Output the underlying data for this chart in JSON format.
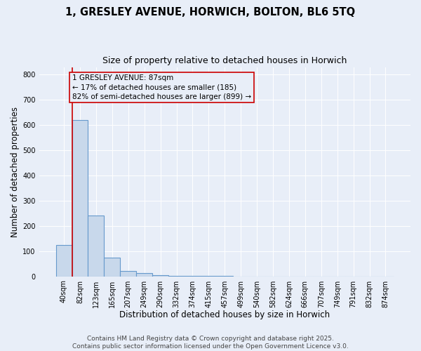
{
  "title_line1": "1, GRESLEY AVENUE, HORWICH, BOLTON, BL6 5TQ",
  "title_line2": "Size of property relative to detached houses in Horwich",
  "xlabel": "Distribution of detached houses by size in Horwich",
  "ylabel": "Number of detached properties",
  "categories": [
    "40sqm",
    "82sqm",
    "123sqm",
    "165sqm",
    "207sqm",
    "249sqm",
    "290sqm",
    "332sqm",
    "374sqm",
    "415sqm",
    "457sqm",
    "499sqm",
    "540sqm",
    "582sqm",
    "624sqm",
    "666sqm",
    "707sqm",
    "749sqm",
    "791sqm",
    "832sqm",
    "874sqm"
  ],
  "values": [
    125,
    620,
    240,
    75,
    22,
    12,
    5,
    3,
    2,
    1,
    1,
    0,
    0,
    0,
    0,
    0,
    0,
    0,
    0,
    0,
    0
  ],
  "bar_color": "#c8d8eb",
  "bar_edge_color": "#6699cc",
  "ylim": [
    0,
    830
  ],
  "yticks": [
    0,
    100,
    200,
    300,
    400,
    500,
    600,
    700,
    800
  ],
  "background_color": "#e8eef8",
  "grid_color": "#ffffff",
  "annotation_box_text_line1": "1 GRESLEY AVENUE: 87sqm",
  "annotation_box_text_line2": "← 17% of detached houses are smaller (185)",
  "annotation_box_text_line3": "82% of semi-detached houses are larger (899) →",
  "red_line_bar_index": 0,
  "footer_line1": "Contains HM Land Registry data © Crown copyright and database right 2025.",
  "footer_line2": "Contains public sector information licensed under the Open Government Licence v3.0.",
  "title_fontsize": 10.5,
  "subtitle_fontsize": 9,
  "axis_label_fontsize": 8.5,
  "tick_fontsize": 7,
  "annotation_fontsize": 7.5,
  "footer_fontsize": 6.5
}
